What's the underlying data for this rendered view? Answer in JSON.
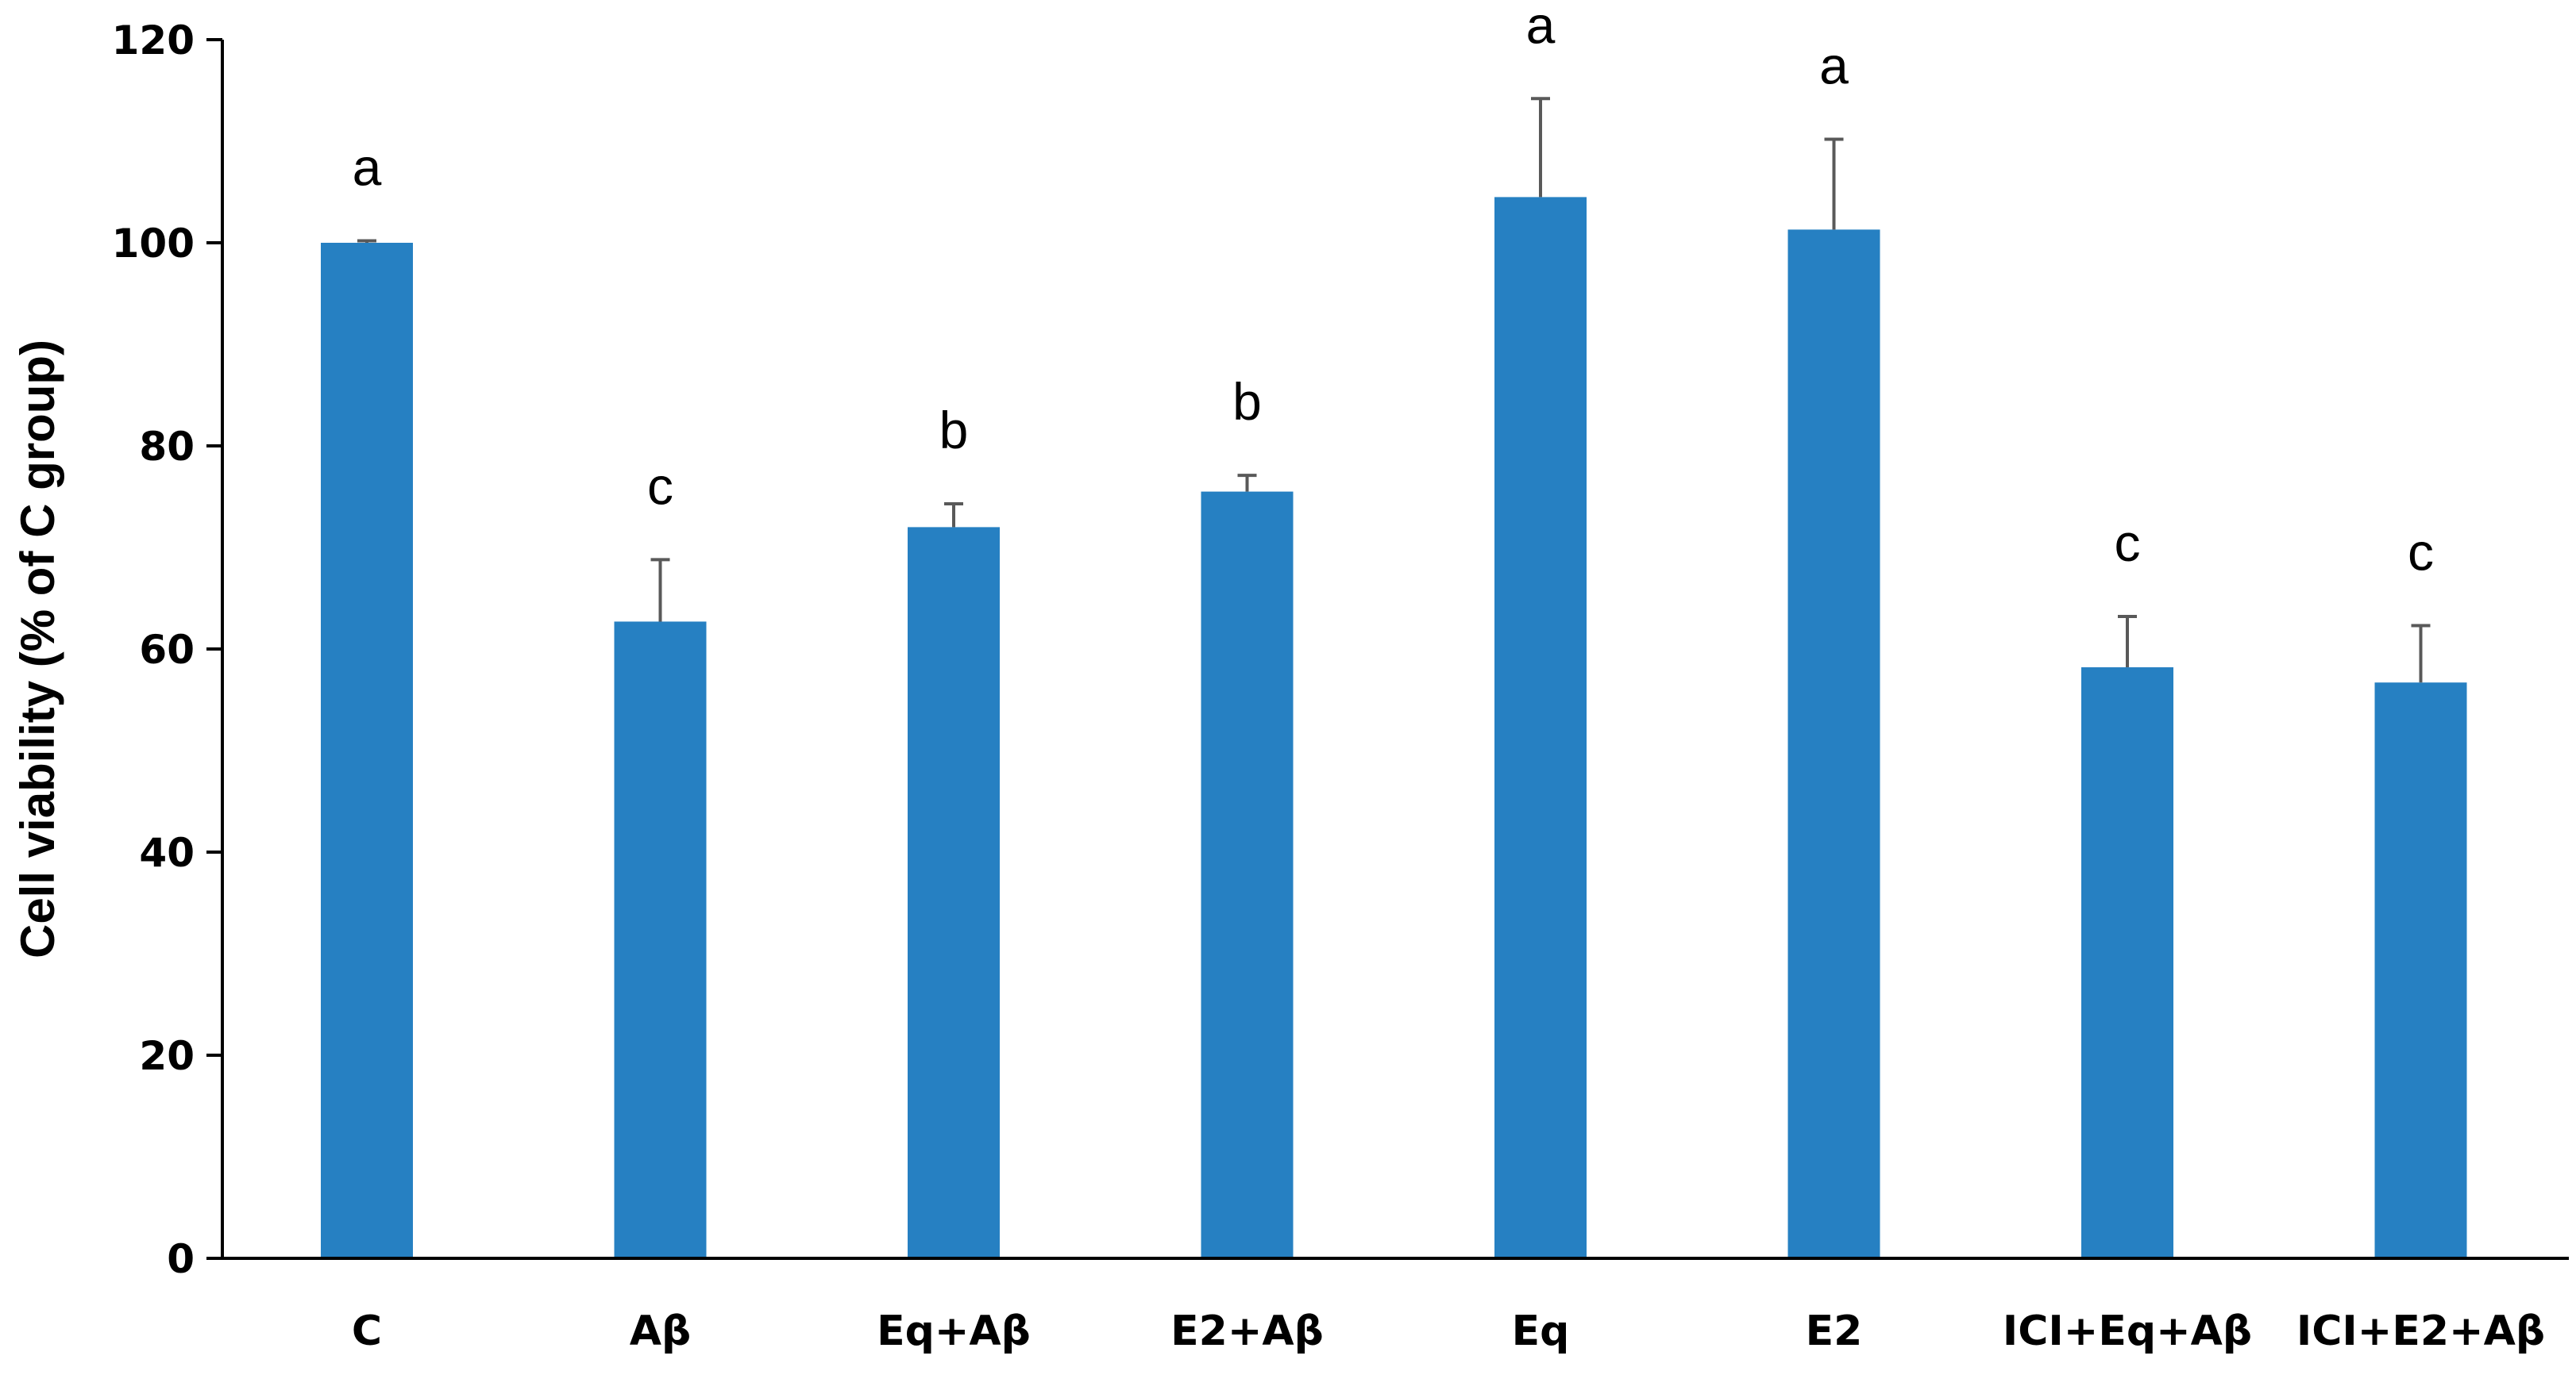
{
  "chart_data": {
    "type": "bar",
    "title": "",
    "xlabel": "",
    "ylabel": "Cell viability (% of C group)",
    "ylim": [
      0,
      120
    ],
    "yticks": [
      0,
      20,
      40,
      60,
      80,
      100,
      120
    ],
    "grid": false,
    "legend": "none",
    "bar_color": "#2680C2",
    "error_bar_color": "#595959",
    "categories": [
      "C",
      "Aβ",
      "Eq+Aβ",
      "E2+Aβ",
      "Eq",
      "E2",
      "ICI+Eq+Aβ",
      "ICI+E2+Aβ"
    ],
    "values": [
      100,
      62.7,
      72.0,
      75.5,
      104.5,
      101.3,
      58.2,
      56.7
    ],
    "errors": [
      0.2,
      6.1,
      2.3,
      1.6,
      9.7,
      8.9,
      5.0,
      5.6
    ],
    "significance_labels": [
      "a",
      "c",
      "b",
      "b",
      "a",
      "a",
      "c",
      "c"
    ]
  }
}
